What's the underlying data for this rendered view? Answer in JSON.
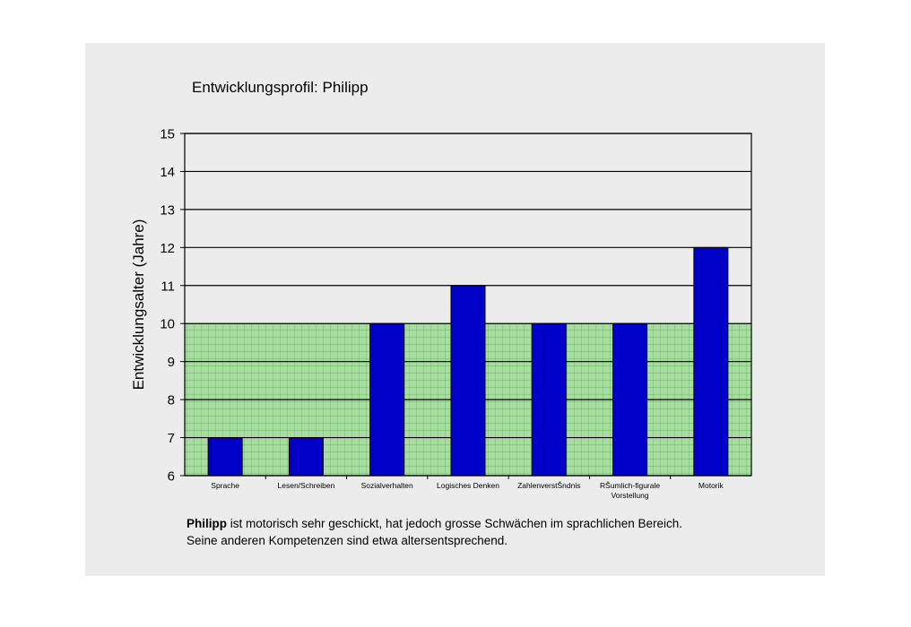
{
  "chart_data": {
    "type": "bar",
    "title": "Entwicklungsprofil: Philipp",
    "xlabel": "",
    "ylabel": "Entwicklungsalter (Jahre)",
    "ylim": [
      6,
      15
    ],
    "yticks": [
      "6",
      "7",
      "8",
      "9",
      "10",
      "11",
      "12",
      "13",
      "14",
      "15"
    ],
    "categories": [
      [
        "Sprache"
      ],
      [
        "Lesen/Schreiben"
      ],
      [
        "Sozialverhalten"
      ],
      [
        "Logisches Denken"
      ],
      [
        "ZahlenverstŠndnis"
      ],
      [
        "RŠumlich-figurale",
        "Vorstellung"
      ],
      [
        "Motorik"
      ]
    ],
    "values": [
      7,
      7,
      10,
      11,
      10,
      10,
      12
    ],
    "reference_band": [
      6,
      10
    ],
    "grid": true,
    "colors": {
      "bar": "#0000c8",
      "band": "#a8dca0",
      "band_grid": "#6fb86a"
    }
  },
  "caption": {
    "bold": "Philipp",
    "line1": " ist motorisch sehr geschickt, hat jedoch grosse Schwächen im sprachlichen Bereich.",
    "line2": "Seine anderen Kompetenzen sind etwa altersentsprechend."
  }
}
